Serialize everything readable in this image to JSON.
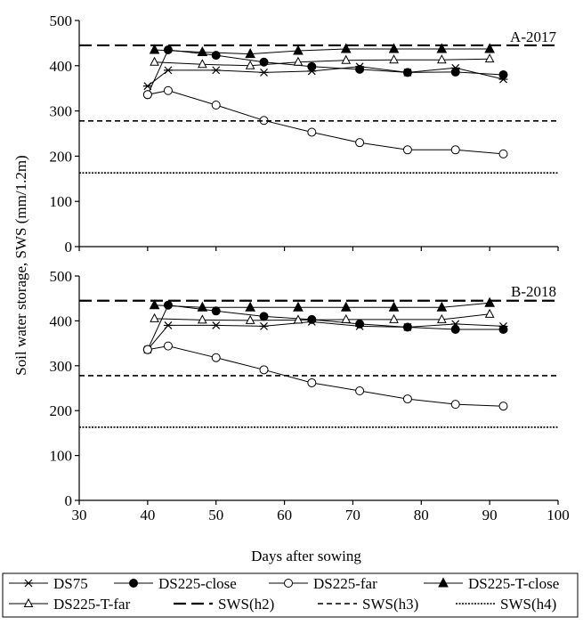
{
  "figure": {
    "ylabel": "Soil water storage, SWS (mm/1.2m)",
    "xlabel": "Days after sowing"
  },
  "legend": [
    {
      "label": "DS75",
      "marker": "star",
      "line": "solid"
    },
    {
      "label": "DS225-close",
      "marker": "filled-circle",
      "line": "solid"
    },
    {
      "label": "DS225-far",
      "marker": "open-circle",
      "line": "solid"
    },
    {
      "label": "DS225-T-close",
      "marker": "filled-triangle",
      "line": "solid"
    },
    {
      "label": "DS225-T-far",
      "marker": "open-triangle",
      "line": "solid"
    },
    {
      "label": "SWS(h2)",
      "marker": "none",
      "line": "long-dash"
    },
    {
      "label": "SWS(h3)",
      "marker": "none",
      "line": "short-dash"
    },
    {
      "label": "SWS(h4)",
      "marker": "none",
      "line": "dotted"
    }
  ],
  "chart_data": [
    {
      "type": "line",
      "title": "A-2017",
      "xlim": [
        30,
        100
      ],
      "ylim": [
        0,
        500
      ],
      "yticks": [
        0,
        100,
        200,
        300,
        400,
        500
      ],
      "xticks": [],
      "series": [
        {
          "name": "DS75",
          "x": [
            40,
            43,
            50,
            57,
            64,
            71,
            78,
            85,
            92
          ],
          "y": [
            355,
            390,
            390,
            385,
            388,
            398,
            385,
            395,
            370
          ]
        },
        {
          "name": "DS225-close",
          "x": [
            40,
            43,
            50,
            57,
            64,
            71,
            78,
            85,
            92
          ],
          "y": [
            336,
            435,
            423,
            408,
            398,
            392,
            385,
            386,
            380
          ]
        },
        {
          "name": "DS225-far",
          "x": [
            40,
            43,
            50,
            57,
            64,
            71,
            78,
            85,
            92
          ],
          "y": [
            336,
            345,
            313,
            279,
            253,
            230,
            214,
            214,
            205
          ]
        },
        {
          "name": "DS225-T-close",
          "x": [
            41,
            48,
            55,
            62,
            69,
            76,
            83,
            90
          ],
          "y": [
            435,
            430,
            426,
            433,
            437,
            437,
            437,
            437
          ]
        },
        {
          "name": "DS225-T-far",
          "x": [
            41,
            48,
            55,
            62,
            69,
            76,
            83,
            90
          ],
          "y": [
            408,
            403,
            400,
            408,
            412,
            413,
            413,
            415
          ]
        },
        {
          "name": "SWS(h2)",
          "hline": 445
        },
        {
          "name": "SWS(h3)",
          "hline": 278
        },
        {
          "name": "SWS(h4)",
          "hline": 163
        }
      ]
    },
    {
      "type": "line",
      "title": "B-2018",
      "xlim": [
        30,
        100
      ],
      "ylim": [
        0,
        500
      ],
      "yticks": [
        0,
        100,
        200,
        300,
        400,
        500
      ],
      "xticks": [
        30,
        40,
        50,
        60,
        70,
        80,
        90,
        100
      ],
      "series": [
        {
          "name": "DS75",
          "x": [
            40,
            43,
            50,
            57,
            64,
            71,
            78,
            85,
            92
          ],
          "y": [
            336,
            390,
            390,
            388,
            398,
            388,
            386,
            393,
            388
          ]
        },
        {
          "name": "DS225-close",
          "x": [
            40,
            43,
            50,
            57,
            64,
            71,
            78,
            85,
            92
          ],
          "y": [
            336,
            435,
            422,
            410,
            403,
            393,
            386,
            381,
            381
          ]
        },
        {
          "name": "DS225-far",
          "x": [
            40,
            43,
            50,
            57,
            64,
            71,
            78,
            85,
            92
          ],
          "y": [
            336,
            344,
            318,
            291,
            262,
            244,
            226,
            214,
            210
          ]
        },
        {
          "name": "DS225-T-close",
          "x": [
            41,
            48,
            55,
            62,
            69,
            76,
            83,
            90
          ],
          "y": [
            435,
            430,
            430,
            430,
            430,
            430,
            430,
            440
          ]
        },
        {
          "name": "DS225-T-far",
          "x": [
            41,
            48,
            55,
            62,
            69,
            76,
            83,
            90
          ],
          "y": [
            405,
            402,
            401,
            402,
            403,
            403,
            403,
            415
          ]
        },
        {
          "name": "SWS(h2)",
          "hline": 445
        },
        {
          "name": "SWS(h3)",
          "hline": 278
        },
        {
          "name": "SWS(h4)",
          "hline": 163
        }
      ]
    }
  ]
}
